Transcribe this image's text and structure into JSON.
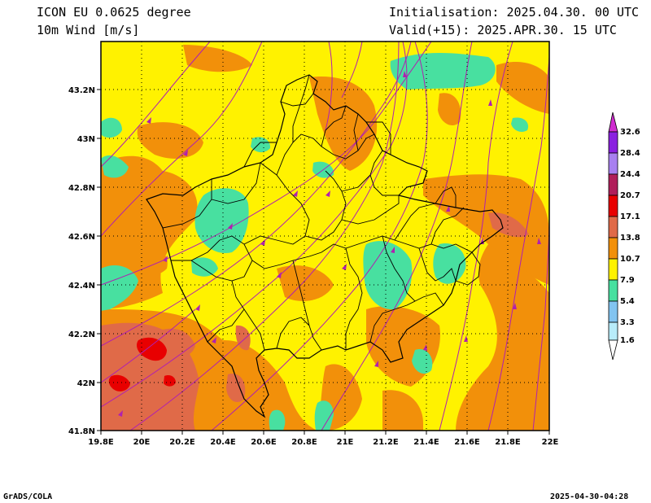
{
  "header": {
    "model_line": "ICON EU 0.0625 degree",
    "field_line": "10m Wind [m/s]",
    "init_line": "Initialisation: 2025.04.30. 00 UTC",
    "valid_line": "Valid(+15): 2025.APR.30. 15 UTC"
  },
  "footer": {
    "left": "GrADS/COLA",
    "right": "2025-04-30-04:28"
  },
  "axes": {
    "x_ticks": [
      "19.8E",
      "20E",
      "20.2E",
      "20.4E",
      "20.6E",
      "20.8E",
      "21E",
      "21.2E",
      "21.4E",
      "21.6E",
      "21.8E",
      "22E"
    ],
    "y_ticks": [
      "43.2N",
      "43N",
      "42.8N",
      "42.6N",
      "42.4N",
      "42.2N",
      "42N",
      "41.8N"
    ]
  },
  "colorbar": {
    "labels": [
      "32.6",
      "28.4",
      "24.4",
      "20.7",
      "17.1",
      "13.8",
      "10.7",
      "7.9",
      "5.4",
      "3.3",
      "1.6"
    ],
    "colors": {
      "above_32_6": "#d02cd0",
      "28_4_32_6": "#8a20e0",
      "24_4_28_4": "#a880f0",
      "20_7_24_4": "#b01e5a",
      "17_1_20_7": "#e80000",
      "13_8_17_1": "#e06a48",
      "10_7_13_8": "#f2900a",
      "7_9_10_7": "#fff200",
      "5_4_7_9": "#48e0a0",
      "3_3_5_4": "#82c4f0",
      "1_6_3_3": "#b8ecfa",
      "below_1_6": "#ffffff"
    }
  },
  "map_colors": {
    "background_field": "#fff200",
    "orange_band": "#f2900a",
    "salmon_band": "#e06a48",
    "red_band": "#e80000",
    "green_band": "#48e0a0",
    "border_line": "#000000",
    "streamline": "#b020b0"
  }
}
